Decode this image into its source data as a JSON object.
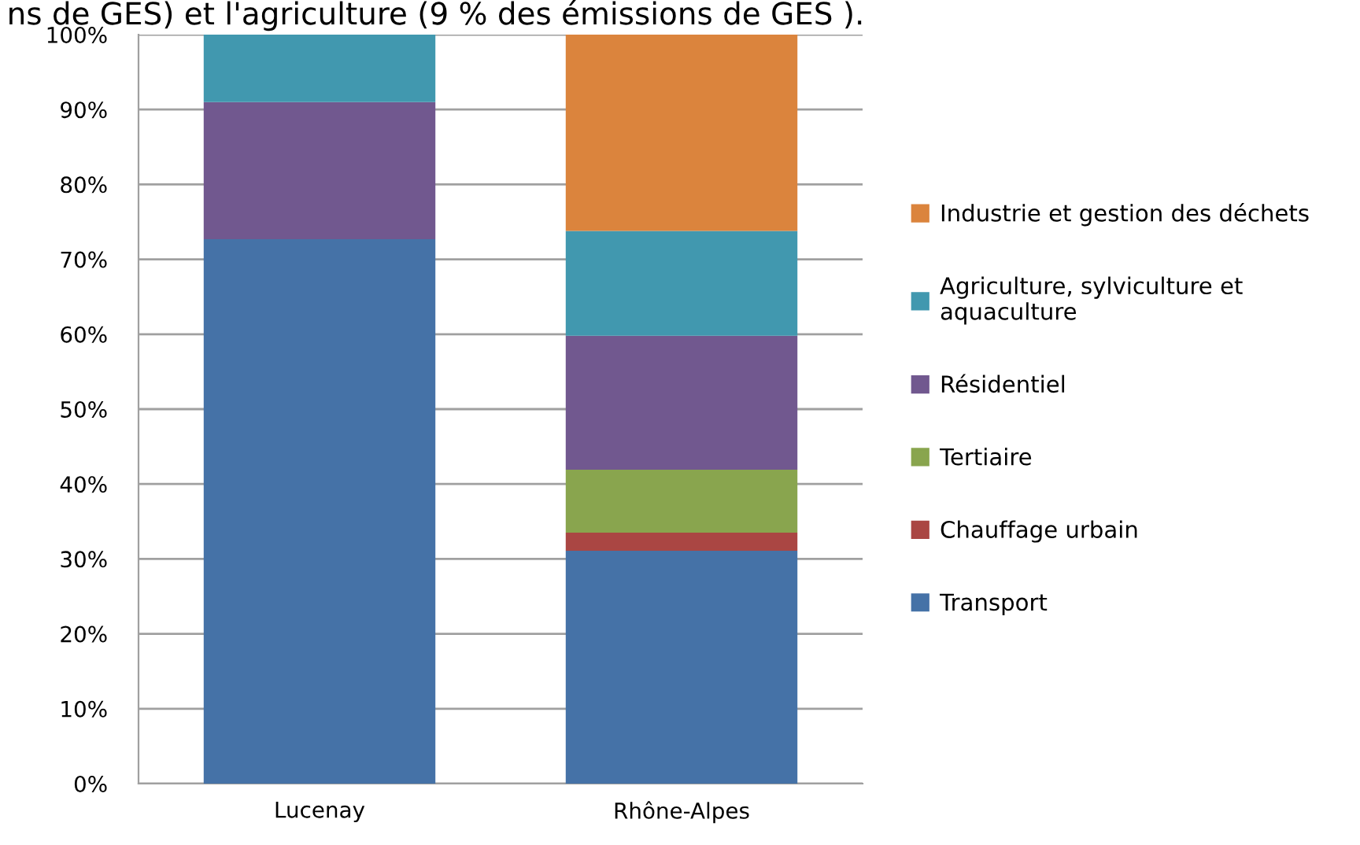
{
  "chart_data": {
    "type": "bar",
    "stacked": true,
    "categories": [
      "Lucenay",
      "Rhône-Alpes"
    ],
    "series": [
      {
        "name": "Transport",
        "color": "#4572a7",
        "values": [
          72.7,
          31.1
        ]
      },
      {
        "name": "Chauffage urbain",
        "color": "#aa4643",
        "values": [
          null,
          2.4
        ]
      },
      {
        "name": "Tertiaire",
        "color": "#89a54e",
        "values": [
          null,
          8.4
        ]
      },
      {
        "name": "Résidentiel",
        "color": "#71588f",
        "values": [
          18.3,
          17.9
        ]
      },
      {
        "name": "Agriculture, sylviculture et\naquaculture",
        "color": "#4198af",
        "values": [
          9.0,
          14.0
        ]
      },
      {
        "name": "Industrie et gestion des déchets",
        "color": "#db843d",
        "values": [
          null,
          26.2
        ]
      }
    ],
    "ylim": [
      0,
      100
    ],
    "yticks": [
      {
        "value": 0,
        "label": "0%"
      },
      {
        "value": 10,
        "label": "10%"
      },
      {
        "value": 20,
        "label": "20%"
      },
      {
        "value": 30,
        "label": "30%"
      },
      {
        "value": 40,
        "label": "40%"
      },
      {
        "value": 50,
        "label": "50%"
      },
      {
        "value": 60,
        "label": "60%"
      },
      {
        "value": 70,
        "label": "70%"
      },
      {
        "value": 80,
        "label": "80%"
      },
      {
        "value": 90,
        "label": "90%"
      },
      {
        "value": 100,
        "label": "100%"
      }
    ],
    "grid": "y",
    "legend": "right",
    "annotations": [
      "ns de GES) et l'agriculture (9 % des émissions de GES )."
    ]
  }
}
